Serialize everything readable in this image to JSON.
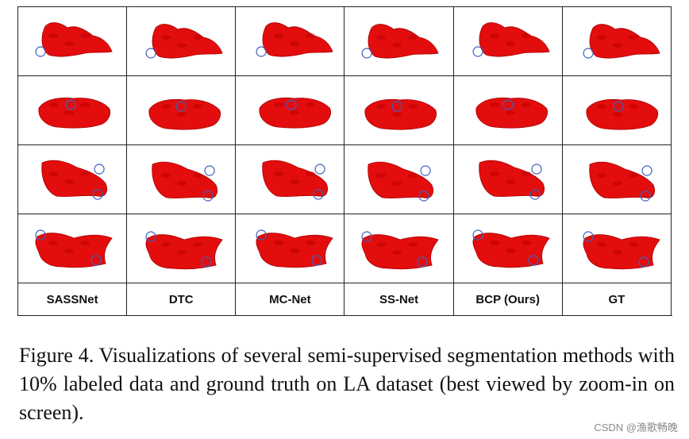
{
  "figure": {
    "methods": [
      {
        "label": "SASSNet"
      },
      {
        "label": "DTC"
      },
      {
        "label": "MC-Net"
      },
      {
        "label": "SS-Net"
      },
      {
        "label": "BCP (Ours)"
      },
      {
        "label": "GT"
      }
    ],
    "rows": 4,
    "caption": "Figure 4. Visualizations of several semi-supervised segmentation methods with 10% labeled data and ground truth on LA dataset (best viewed by zoom-in on screen).",
    "colors": {
      "segmentation": "#e30d0d",
      "highlight_circle": "#3f5fc0"
    }
  },
  "watermark": "CSDN @渔歌畅晚"
}
